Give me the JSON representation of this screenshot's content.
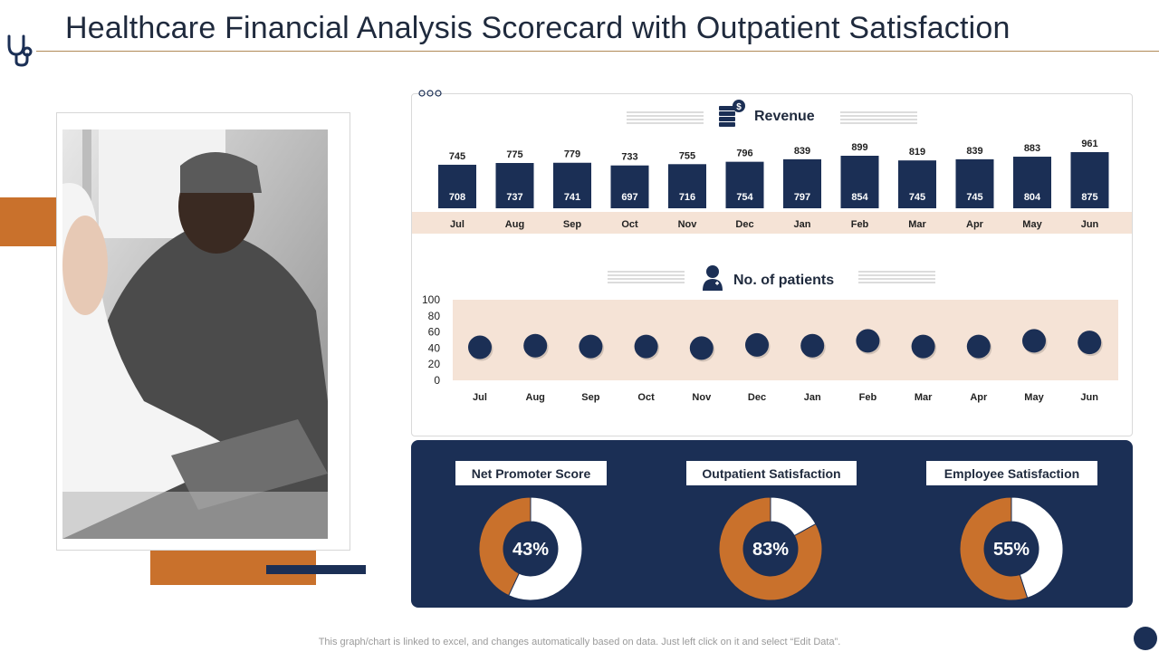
{
  "header": {
    "title": "Healthcare Financial Analysis Scorecard with Outpatient Satisfaction"
  },
  "colors": {
    "navy": "#1b2f55",
    "orange": "#c9712c",
    "peach": "#f5e3d6",
    "rule": "#b08a57"
  },
  "icons": {
    "logo": "stethoscope-icon",
    "revenue": "money-stack-icon",
    "patients": "doctor-person-icon"
  },
  "chart_data": [
    {
      "type": "bar",
      "title": "Revenue",
      "categories": [
        "Jul",
        "Aug",
        "Sep",
        "Oct",
        "Nov",
        "Dec",
        "Jan",
        "Feb",
        "Mar",
        "Apr",
        "May",
        "Jun"
      ],
      "series": [
        {
          "values": [
            745,
            775,
            779,
            733,
            755,
            796,
            839,
            899,
            819,
            839,
            883,
            961
          ]
        },
        {
          "values": [
            708,
            737,
            741,
            697,
            716,
            754,
            797,
            854,
            745,
            745,
            804,
            875
          ]
        }
      ]
    },
    {
      "type": "scatter",
      "title": "No. of patients",
      "categories": [
        "Jul",
        "Aug",
        "Sep",
        "Oct",
        "Nov",
        "Dec",
        "Jan",
        "Feb",
        "Mar",
        "Apr",
        "May",
        "Jun"
      ],
      "values": [
        41,
        43,
        42,
        42,
        40,
        44,
        43,
        49,
        42,
        42,
        49,
        47
      ],
      "yticks": [
        100,
        80,
        60,
        40,
        20,
        0
      ],
      "ylim": [
        0,
        100
      ]
    }
  ],
  "kpis": [
    {
      "label": "Net Promoter Score",
      "value": 43,
      "display": "43%"
    },
    {
      "label": "Outpatient Satisfaction",
      "value": 83,
      "display": "83%"
    },
    {
      "label": "Employee Satisfaction",
      "value": 55,
      "display": "55%"
    }
  ],
  "footer": {
    "note": "This graph/chart is linked to excel, and changes automatically based on data. Just left click on it and select “Edit Data”."
  }
}
